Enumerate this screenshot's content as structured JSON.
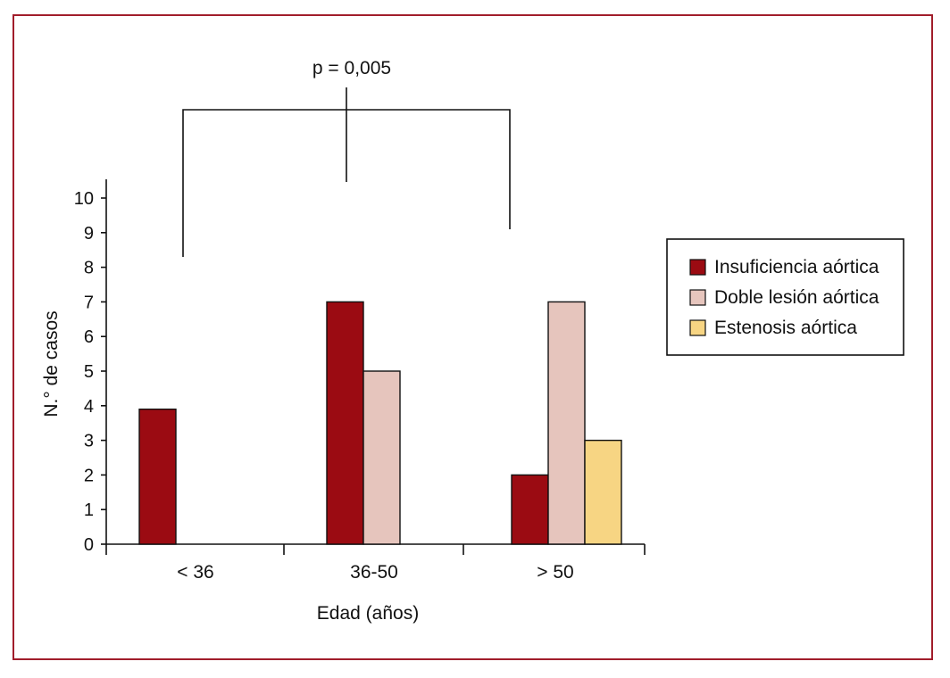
{
  "chart_data": {
    "type": "bar",
    "title": "",
    "xlabel": "Edad (años)",
    "ylabel": "N.° de casos",
    "ylim": [
      0,
      10
    ],
    "yticks": [
      0,
      1,
      2,
      3,
      4,
      5,
      6,
      7,
      8,
      9,
      10
    ],
    "categories": [
      "< 36",
      "36-50",
      "> 50"
    ],
    "series": [
      {
        "name": "Insuficiencia aórtica",
        "color": "#9b0b12",
        "values": [
          3.9,
          7,
          2
        ]
      },
      {
        "name": "Doble lesión aórtica",
        "color": "#e6c5bd",
        "values": [
          null,
          5,
          7
        ]
      },
      {
        "name": "Estenosis aórtica",
        "color": "#f7d583",
        "values": [
          null,
          null,
          3
        ]
      }
    ],
    "annotation": {
      "text": "p = 0,005"
    },
    "legend_position": "right",
    "grid": false
  }
}
